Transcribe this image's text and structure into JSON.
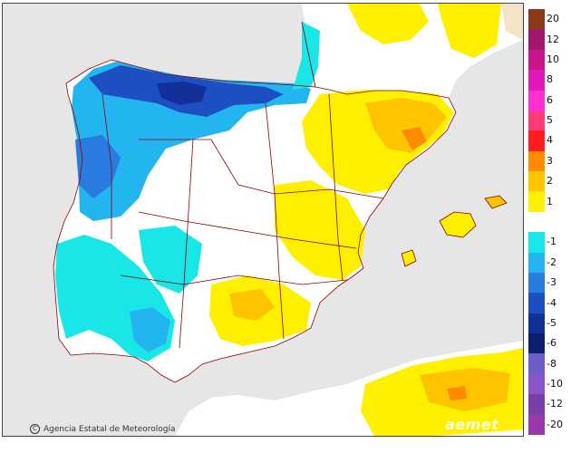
{
  "map": {
    "credit_text": "Agencia Estatal de Meteorología",
    "credit_icon": "copyright-icon",
    "brand_text": "aemet",
    "colors": {
      "sea": "#e6e6e6",
      "land": "#ffffff",
      "border": "#8b0000"
    }
  },
  "legend": {
    "bands": [
      {
        "label": "20",
        "color": "#8b3a1a"
      },
      {
        "label": "12",
        "color": "#a0196e"
      },
      {
        "label": "10",
        "color": "#c8168c"
      },
      {
        "label": "8",
        "color": "#e319b6"
      },
      {
        "label": "6",
        "color": "#ff2fd6"
      },
      {
        "label": "5",
        "color": "#ff3c7a"
      },
      {
        "label": "4",
        "color": "#ff1e1e"
      },
      {
        "label": "3",
        "color": "#ff8a00"
      },
      {
        "label": "2",
        "color": "#ffc400"
      },
      {
        "label": "1",
        "color": "#fff000"
      },
      {
        "label": "",
        "color": "#ffffff"
      },
      {
        "label": "-1",
        "color": "#19e6e6"
      },
      {
        "label": "-2",
        "color": "#23b5f0"
      },
      {
        "label": "-3",
        "color": "#2a7be0"
      },
      {
        "label": "-4",
        "color": "#1d4fc2"
      },
      {
        "label": "-5",
        "color": "#12309a"
      },
      {
        "label": "-6",
        "color": "#0b1f6e"
      },
      {
        "label": "-8",
        "color": "#6e5fc8"
      },
      {
        "label": "-10",
        "color": "#8a55c8"
      },
      {
        "label": "-12",
        "color": "#7a3fa8"
      },
      {
        "label": "-20",
        "color": "#9a3aa8"
      }
    ]
  }
}
